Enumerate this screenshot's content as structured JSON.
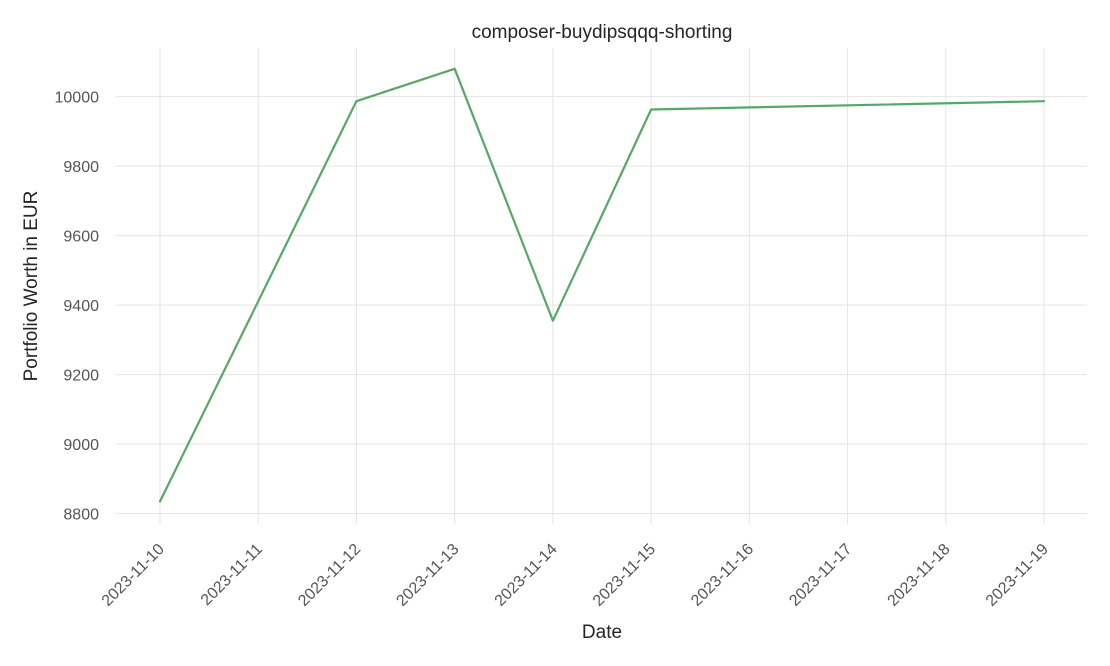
{
  "chart_data": {
    "type": "line",
    "title": "composer-buydipsqqq-shorting",
    "xlabel": "Date",
    "ylabel": "Portfolio Worth in EUR",
    "x": [
      "2023-11-10",
      "2023-11-11",
      "2023-11-12",
      "2023-11-13",
      "2023-11-14",
      "2023-11-15",
      "2023-11-16",
      "2023-11-17",
      "2023-11-18",
      "2023-11-19"
    ],
    "series": [
      {
        "color": "#55a868",
        "points": [
          {
            "x": "2023-11-10",
            "y": 8835
          },
          {
            "x": "2023-11-12",
            "y": 9987
          },
          {
            "x": "2023-11-13",
            "y": 10080
          },
          {
            "x": "2023-11-14",
            "y": 9355
          },
          {
            "x": "2023-11-15",
            "y": 9963
          },
          {
            "x": "2023-11-19",
            "y": 9987
          }
        ]
      }
    ],
    "y_ticks": [
      8800,
      9000,
      9200,
      9400,
      9600,
      9800,
      10000
    ],
    "ylim": [
      8770,
      10140
    ],
    "grid": true,
    "legend": "none"
  }
}
